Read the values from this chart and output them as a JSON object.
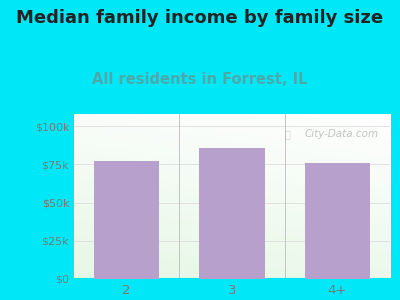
{
  "title": "Median family income by family size",
  "subtitle": "All residents in Forrest, IL",
  "categories": [
    "2",
    "3",
    "4+"
  ],
  "values": [
    77000,
    86000,
    76000
  ],
  "bar_color": "#b8a0cc",
  "title_fontsize": 13,
  "subtitle_fontsize": 10.5,
  "subtitle_color": "#4aaaaa",
  "title_color": "#222222",
  "bg_outer": "#00e8f8",
  "yticks": [
    0,
    25000,
    50000,
    75000,
    100000
  ],
  "ytick_labels": [
    "$0",
    "$25k",
    "$50k",
    "$75k",
    "$100k"
  ],
  "ylim": [
    0,
    108000
  ],
  "watermark": "City-Data.com",
  "tick_color": "#777777",
  "grid_color": "#dddddd"
}
